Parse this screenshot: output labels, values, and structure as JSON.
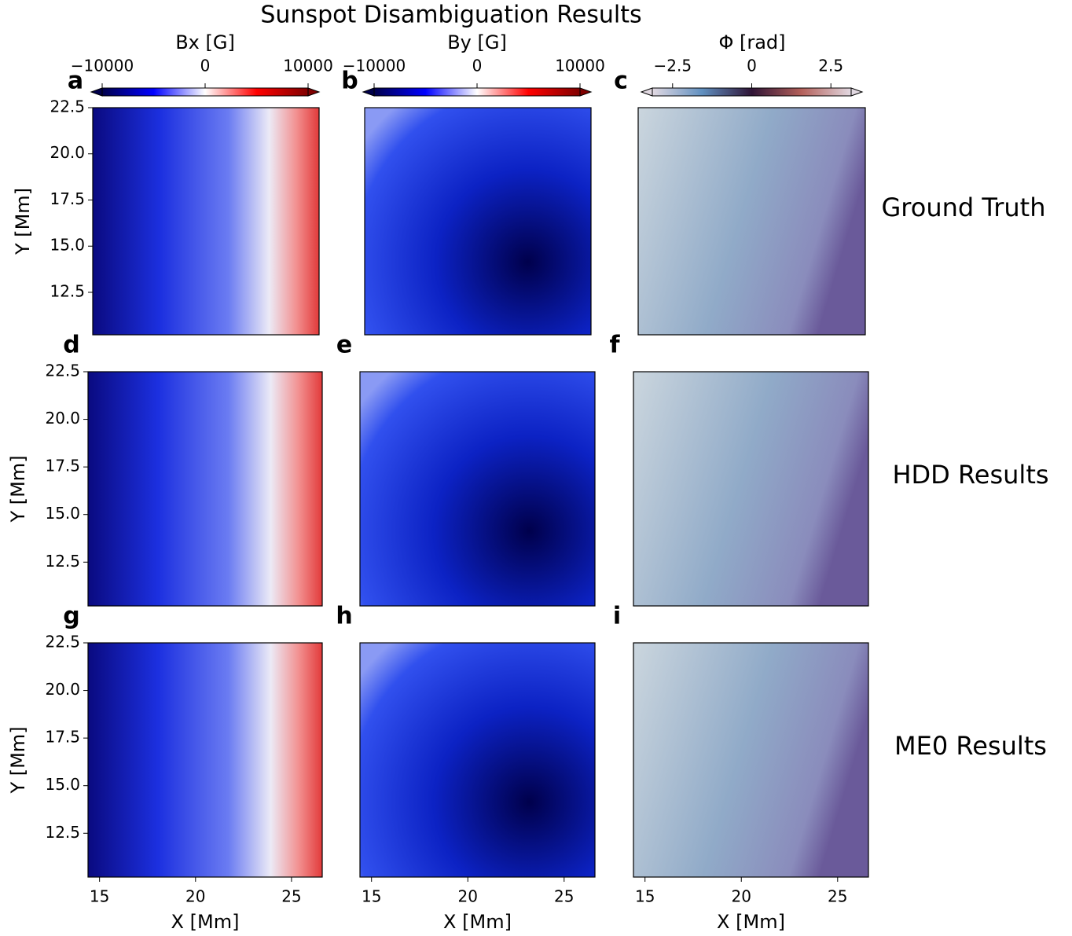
{
  "title": "Sunspot Disambiguation Results",
  "row_labels": [
    "Ground Truth",
    "HDD Results",
    "ME0 Results"
  ],
  "colorbars": [
    {
      "label": "Bx [G]",
      "lim": [
        -10000,
        10000
      ],
      "colormap": "seismic",
      "ticks": [
        {
          "value": -10000,
          "label": "−10000"
        },
        0,
        10000
      ]
    },
    {
      "label": "By [G]",
      "lim": [
        -10000,
        10000
      ],
      "colormap": "seismic",
      "ticks": [
        {
          "value": -10000,
          "label": "−10000"
        },
        0,
        10000
      ]
    },
    {
      "label": "Φ [rad]",
      "lim": [
        -3.14,
        3.14
      ],
      "colormap": "twilight",
      "ticks": [
        {
          "value": -2.5,
          "label": "−2.5"
        },
        0.0,
        2.5
      ]
    }
  ],
  "chart_data": [
    {
      "type": "heatmap",
      "panel": "a",
      "ylabel": "Y [Mm]",
      "xlim": [
        14.4,
        26.6
      ],
      "ylim": [
        10.2,
        22.5
      ],
      "yticks": [
        12.5,
        15.0,
        17.5,
        20.0,
        22.5
      ]
    },
    {
      "type": "heatmap",
      "panel": "b",
      "xlim": [
        14.4,
        26.6
      ],
      "ylim": [
        10.2,
        22.5
      ]
    },
    {
      "type": "heatmap",
      "panel": "c",
      "xlim": [
        14.4,
        26.6
      ],
      "ylim": [
        10.2,
        22.5
      ]
    },
    {
      "type": "heatmap",
      "panel": "d",
      "ylabel": "Y [Mm]",
      "xlim": [
        14.4,
        26.6
      ],
      "ylim": [
        10.2,
        22.5
      ],
      "yticks": [
        12.5,
        15.0,
        17.5,
        20.0,
        22.5
      ]
    },
    {
      "type": "heatmap",
      "panel": "e",
      "xlim": [
        14.4,
        26.6
      ],
      "ylim": [
        10.2,
        22.5
      ]
    },
    {
      "type": "heatmap",
      "panel": "f",
      "xlim": [
        14.4,
        26.6
      ],
      "ylim": [
        10.2,
        22.5
      ]
    },
    {
      "type": "heatmap",
      "panel": "g",
      "ylabel": "Y [Mm]",
      "xlabel": "X [Mm]",
      "xlim": [
        14.4,
        26.6
      ],
      "ylim": [
        10.2,
        22.5
      ],
      "xticks": [
        15,
        20,
        25
      ],
      "yticks": [
        12.5,
        15.0,
        17.5,
        20.0,
        22.5
      ]
    },
    {
      "type": "heatmap",
      "panel": "h",
      "xlabel": "X [Mm]",
      "xlim": [
        14.4,
        26.6
      ],
      "ylim": [
        10.2,
        22.5
      ],
      "xticks": [
        15,
        20,
        25
      ]
    },
    {
      "type": "heatmap",
      "panel": "i",
      "xlabel": "X [Mm]",
      "xlim": [
        14.4,
        26.6
      ],
      "ylim": [
        10.2,
        22.5
      ],
      "xticks": [
        15,
        20,
        25
      ]
    }
  ]
}
